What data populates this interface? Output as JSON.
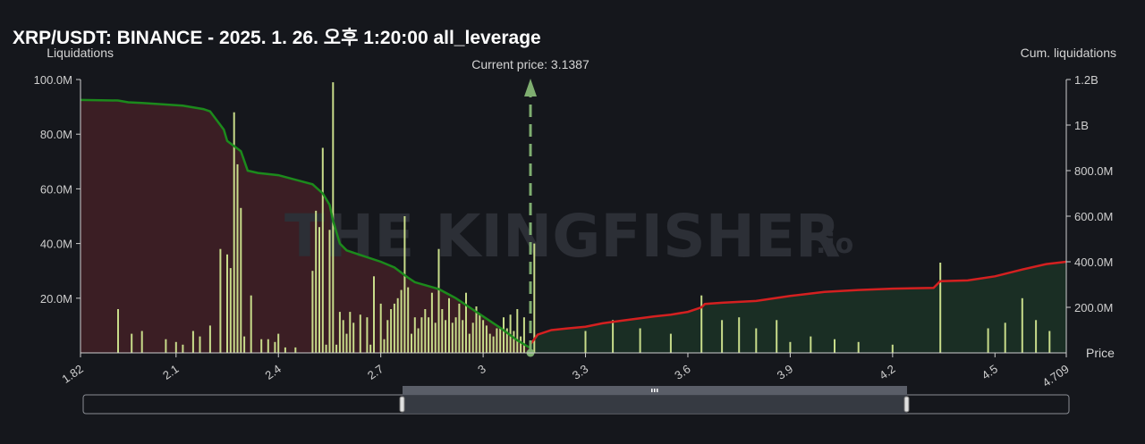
{
  "title": "XRP/USDT: BINANCE - 2025. 1. 26. 오후 1:20:00 all_leverage",
  "watermark": {
    "main": "THE KINGFISHER",
    "suffix": ".io"
  },
  "colors": {
    "background": "#15171c",
    "bars": "#c8dc8a",
    "cum_left": "#1c8a1c",
    "cum_right": "#d42020",
    "fill_left": "#3b1e24",
    "fill_right": "#1a2e24",
    "current_price": "#7fae70"
  },
  "chart_data": {
    "type": "bar",
    "title": "XRP/USDT: BINANCE - 2025. 1. 26. 오후 1:20:00 all_leverage",
    "xlabel": "Price",
    "ylabel_left": "Liquidations",
    "ylabel_right": "Cum. liquidations",
    "xlim": [
      1.82,
      4.709
    ],
    "x_ticks": [
      "1.82",
      "2.1",
      "2.4",
      "2.7",
      "3",
      "3.3",
      "3.6",
      "3.9",
      "4.2",
      "4.5",
      "4.709"
    ],
    "ylim_left": [
      0,
      100000000
    ],
    "y_ticks_left": [
      "20.0M",
      "40.0M",
      "60.0M",
      "80.0M",
      "100.0M"
    ],
    "ylim_right": [
      0,
      1200000000
    ],
    "y_ticks_right": [
      "200.0M",
      "400.0M",
      "600.0M",
      "800.0M",
      "1B",
      "1.2B"
    ],
    "current_price": 3.1387,
    "current_price_label": "Current price: 3.1387",
    "liquidations": {
      "name": "Liquidations",
      "x": [
        1.93,
        1.97,
        2.0,
        2.07,
        2.1,
        2.12,
        2.15,
        2.17,
        2.2,
        2.23,
        2.25,
        2.26,
        2.27,
        2.28,
        2.29,
        2.3,
        2.32,
        2.35,
        2.37,
        2.39,
        2.4,
        2.42,
        2.45,
        2.5,
        2.51,
        2.52,
        2.53,
        2.54,
        2.55,
        2.56,
        2.57,
        2.58,
        2.59,
        2.6,
        2.61,
        2.62,
        2.64,
        2.66,
        2.67,
        2.68,
        2.7,
        2.71,
        2.72,
        2.73,
        2.74,
        2.75,
        2.76,
        2.77,
        2.78,
        2.79,
        2.8,
        2.81,
        2.82,
        2.83,
        2.84,
        2.85,
        2.86,
        2.87,
        2.88,
        2.89,
        2.9,
        2.91,
        2.92,
        2.93,
        2.94,
        2.95,
        2.96,
        2.97,
        2.98,
        2.99,
        3.0,
        3.01,
        3.02,
        3.03,
        3.04,
        3.05,
        3.06,
        3.07,
        3.08,
        3.09,
        3.1,
        3.11,
        3.12,
        3.15,
        3.3,
        3.38,
        3.46,
        3.55,
        3.64,
        3.7,
        3.75,
        3.8,
        3.86,
        3.9,
        3.96,
        4.03,
        4.1,
        4.2,
        4.34,
        4.48,
        4.53,
        4.58,
        4.62,
        4.66
      ],
      "values": [
        16,
        7,
        8,
        5,
        4,
        3,
        8,
        6,
        10,
        38,
        36,
        31,
        88,
        69,
        53,
        6,
        21,
        5,
        5,
        4,
        7,
        2,
        2,
        30,
        52,
        46,
        75,
        3,
        45,
        99,
        3,
        15,
        12,
        7,
        15,
        11,
        14,
        13,
        3,
        28,
        18,
        5,
        12,
        16,
        18,
        20,
        23,
        50,
        24,
        7,
        13,
        9,
        13,
        16,
        13,
        22,
        11,
        38,
        16,
        12,
        20,
        11,
        13,
        18,
        12,
        22,
        7,
        11,
        17,
        14,
        12,
        10,
        7,
        6,
        9,
        9,
        13,
        9,
        14,
        8,
        16,
        6,
        13,
        40,
        8,
        12,
        9,
        7,
        21,
        12,
        13,
        9,
        12,
        4,
        6,
        5,
        4,
        3,
        33,
        9,
        11,
        20,
        12,
        8
      ]
    },
    "cum_left": {
      "name": "Cum. liquidations",
      "x": [
        1.82,
        1.93,
        1.96,
        2.0,
        2.12,
        2.18,
        2.2,
        2.24,
        2.25,
        2.29,
        2.31,
        2.34,
        2.4,
        2.45,
        2.5,
        2.53,
        2.55,
        2.56,
        2.58,
        2.6,
        2.64,
        2.7,
        2.74,
        2.78,
        2.8,
        2.87,
        2.92,
        2.96,
        3.0,
        3.05,
        3.1,
        3.14
      ],
      "values": [
        1110,
        1108,
        1100,
        1097,
        1085,
        1070,
        1060,
        980,
        930,
        885,
        800,
        790,
        780,
        760,
        740,
        700,
        650,
        580,
        480,
        450,
        430,
        400,
        375,
        330,
        310,
        280,
        240,
        200,
        160,
        110,
        55,
        20
      ]
    },
    "cum_right": {
      "name": "Cum. liquidations",
      "x": [
        3.14,
        3.16,
        3.2,
        3.25,
        3.3,
        3.35,
        3.4,
        3.45,
        3.5,
        3.55,
        3.6,
        3.64,
        3.65,
        3.7,
        3.8,
        3.9,
        4.0,
        4.1,
        4.2,
        4.32,
        4.34,
        4.42,
        4.5,
        4.58,
        4.65,
        4.709
      ],
      "values": [
        40,
        80,
        100,
        108,
        115,
        130,
        140,
        150,
        160,
        168,
        180,
        200,
        215,
        220,
        228,
        250,
        268,
        276,
        282,
        285,
        315,
        318,
        336,
        366,
        390,
        400
      ]
    }
  }
}
